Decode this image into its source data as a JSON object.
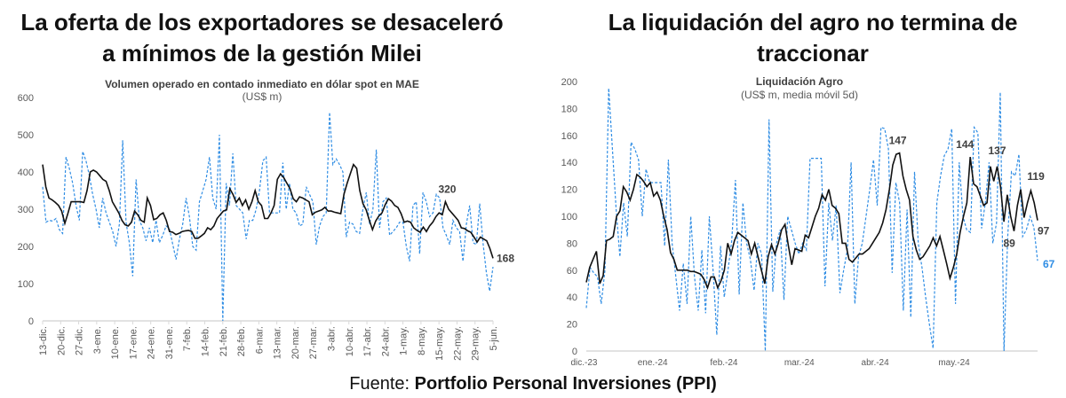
{
  "left_title_lines": [
    "La oferta de los exportadores se desaceleró",
    "a mínimos de la gestión Milei"
  ],
  "right_title_lines": [
    "La liquidación del agro no termina de",
    "traccionar"
  ],
  "footer": {
    "prefix": "Fuente:",
    "source": "Portfolio Personal Inversiones (PPI)"
  },
  "colors": {
    "average_line": "#111111",
    "daily_line": "#2f8de4",
    "axis": "#d9d9d9",
    "tick_text": "#595959"
  },
  "chart_data": [
    {
      "type": "line",
      "title": "Volumen operado en contado inmediato  en dólar spot en MAE",
      "subtitle": "(US$ m)",
      "ylim": [
        0,
        600
      ],
      "yticks": [
        0,
        100,
        200,
        300,
        400,
        500,
        600
      ],
      "xticks": [
        "13-dic.",
        "20-dic.",
        "27-dic.",
        "3-ene.",
        "10-ene.",
        "17-ene.",
        "24-ene.",
        "31-ene.",
        "7-feb.",
        "14-feb.",
        "21-feb.",
        "28-feb.",
        "6-mar.",
        "13-mar.",
        "20-mar.",
        "27-mar.",
        "3-abr.",
        "10-abr.",
        "17-abr.",
        "24-abr.",
        "1-may.",
        "8-may.",
        "15-may.",
        "22-may.",
        "29-may.",
        "5-jun."
      ],
      "grid": false,
      "series": [
        {
          "style": "solid-black",
          "values": [
            420,
            360,
            330,
            325,
            318,
            310,
            295,
            262,
            290,
            320,
            320,
            320,
            320,
            318,
            350,
            400,
            405,
            400,
            390,
            380,
            375,
            350,
            320,
            305,
            290,
            270,
            258,
            255,
            265,
            295,
            285,
            270,
            265,
            330,
            310,
            272,
            275,
            285,
            290,
            270,
            240,
            238,
            232,
            235,
            240,
            242,
            243,
            240,
            222,
            222,
            228,
            235,
            250,
            245,
            255,
            275,
            285,
            295,
            298,
            355,
            340,
            318,
            330,
            310,
            325,
            300,
            320,
            350,
            320,
            310,
            275,
            275,
            290,
            310,
            380,
            395,
            385,
            370,
            355,
            328,
            320,
            333,
            330,
            325,
            320,
            285,
            292,
            295,
            298,
            305,
            295,
            295,
            292,
            290,
            288,
            340,
            370,
            395,
            420,
            410,
            350,
            315,
            298,
            270,
            245,
            268,
            282,
            290,
            312,
            328,
            322,
            310,
            305,
            288,
            265,
            268,
            265,
            250,
            243,
            238,
            252,
            240,
            255,
            265,
            280,
            290,
            285,
            320,
            300,
            290,
            280,
            270,
            250,
            248,
            242,
            238,
            225,
            212,
            225,
            220,
            215,
            195,
            168
          ]
        },
        {
          "style": "dashed-blue",
          "values": [
            360,
            265,
            270,
            268,
            275,
            245,
            235,
            440,
            410,
            370,
            310,
            270,
            455,
            430,
            390,
            340,
            300,
            250,
            330,
            290,
            265,
            240,
            200,
            260,
            485,
            265,
            210,
            120,
            380,
            270,
            250,
            215,
            250,
            210,
            270,
            210,
            230,
            255,
            248,
            205,
            165,
            220,
            260,
            330,
            280,
            200,
            190,
            320,
            350,
            380,
            440,
            330,
            300,
            500,
            0,
            370,
            310,
            450,
            310,
            300,
            290,
            220,
            270,
            270,
            300,
            350,
            430,
            440,
            290,
            290,
            290,
            290,
            425,
            300,
            370,
            300,
            290,
            255,
            260,
            360,
            340,
            320,
            205,
            255,
            280,
            290,
            560,
            420,
            435,
            420,
            400,
            225,
            265,
            260,
            240,
            235,
            300,
            345,
            260,
            300,
            460,
            250,
            320,
            330,
            230,
            240,
            250,
            265,
            265,
            200,
            160,
            310,
            320,
            180,
            345,
            320,
            280,
            290,
            340,
            330,
            250,
            230,
            205,
            270,
            250,
            240,
            160,
            260,
            310,
            210,
            205,
            315,
            210,
            130,
            80,
            145
          ]
        }
      ],
      "annotations": [
        {
          "text": "320",
          "series": 0
        },
        {
          "text": "168",
          "series": 0
        }
      ]
    },
    {
      "type": "line",
      "title": "Liquidación Agro",
      "subtitle": "(US$ m, media móvil 5d)",
      "ylim": [
        0,
        200
      ],
      "yticks": [
        0,
        20,
        40,
        60,
        80,
        100,
        120,
        140,
        160,
        180,
        200
      ],
      "xticks": [
        "dic.-23",
        "ene.-24",
        "feb.-24",
        "mar.-24",
        "abr.-24",
        "may.-24"
      ],
      "grid": false,
      "series": [
        {
          "style": "solid-black",
          "values": [
            51,
            62,
            68,
            74,
            50,
            56,
            82,
            83,
            85,
            100,
            104,
            122,
            118,
            112,
            120,
            131,
            129,
            126,
            122,
            125,
            115,
            118,
            112,
            100,
            90,
            73,
            68,
            60,
            60,
            60,
            60,
            59,
            59,
            58,
            57,
            53,
            47,
            55,
            55,
            47,
            52,
            60,
            80,
            72,
            82,
            88,
            86,
            84,
            82,
            72,
            80,
            70,
            60,
            50,
            70,
            79,
            72,
            80,
            90,
            94,
            78,
            64,
            76,
            75,
            74,
            86,
            84,
            92,
            100,
            106,
            116,
            112,
            120,
            108,
            106,
            102,
            80,
            80,
            68,
            66,
            69,
            72,
            72,
            74,
            76,
            80,
            84,
            88,
            95,
            105,
            120,
            138,
            146,
            147,
            130,
            120,
            112,
            85,
            75,
            68,
            70,
            74,
            78,
            84,
            78,
            85,
            75,
            65,
            54,
            62,
            72,
            88,
            100,
            110,
            144,
            124,
            122,
            115,
            108,
            110,
            137,
            126,
            137,
            122,
            96,
            116,
            100,
            89,
            108,
            120,
            99,
            110,
            119,
            110,
            97
          ]
        },
        {
          "style": "dashed-blue",
          "values": [
            32,
            62,
            58,
            55,
            35,
            60,
            195,
            150,
            105,
            70,
            110,
            85,
            155,
            150,
            142,
            100,
            135,
            125,
            125,
            125,
            125,
            78,
            142,
            80,
            55,
            30,
            65,
            35,
            100,
            55,
            30,
            75,
            28,
            100,
            60,
            12,
            78,
            40,
            60,
            82,
            127,
            42,
            110,
            80,
            68,
            45,
            80,
            72,
            0,
            172,
            44,
            80,
            90,
            38,
            100,
            90,
            80,
            72,
            80,
            75,
            143,
            143,
            143,
            143,
            48,
            110,
            82,
            108,
            43,
            60,
            75,
            140,
            35,
            70,
            80,
            100,
            120,
            142,
            108,
            166,
            165,
            150,
            58,
            125,
            110,
            30,
            105,
            25,
            133,
            80,
            62,
            40,
            20,
            2,
            110,
            130,
            145,
            150,
            165,
            35,
            140,
            100,
            90,
            88,
            166,
            162,
            91,
            110,
            140,
            80,
            95,
            192,
            0,
            85,
            133,
            130,
            146,
            85,
            90,
            100,
            92,
            67
          ]
        }
      ],
      "annotations": [
        {
          "text": "147",
          "series": 0
        },
        {
          "text": "144",
          "series": 0
        },
        {
          "text": "137",
          "series": 0
        },
        {
          "text": "119",
          "series": 0
        },
        {
          "text": "97",
          "series": 0
        },
        {
          "text": "89",
          "series": 0
        },
        {
          "text": "67",
          "series": 1
        }
      ]
    }
  ]
}
